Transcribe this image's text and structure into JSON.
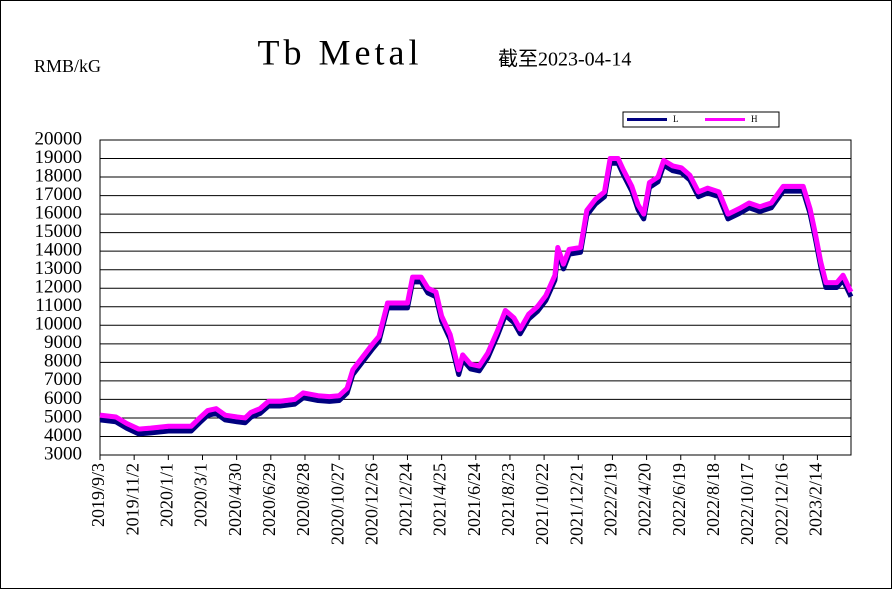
{
  "chart_data": {
    "type": "line",
    "title": "Tb Metal",
    "subtitle": "截至2023-04-14",
    "y_label": "RMB/kG",
    "x": [
      "2019/9/3",
      "2019/10/1",
      "2019/10/20",
      "2019/11/10",
      "2019/12/1",
      "2020/1/1",
      "2020/2/10",
      "2020/2/25",
      "2020/3/10",
      "2020/3/25",
      "2020/4/10",
      "2020/5/1",
      "2020/5/15",
      "2020/5/25",
      "2020/6/10",
      "2020/6/25",
      "2020/7/15",
      "2020/8/10",
      "2020/8/25",
      "2020/9/20",
      "2020/10/10",
      "2020/10/27",
      "2020/11/10",
      "2020/11/20",
      "2020/12/10",
      "2020/12/25",
      "2021/1/5",
      "2021/1/20",
      "2021/2/10",
      "2021/2/24",
      "2021/3/5",
      "2021/3/20",
      "2021/4/1",
      "2021/4/15",
      "2021/4/25",
      "2021/5/10",
      "2021/5/25",
      "2021/6/1",
      "2021/6/15",
      "2021/6/30",
      "2021/7/15",
      "2021/8/1",
      "2021/8/15",
      "2021/8/30",
      "2021/9/10",
      "2021/9/25",
      "2021/10/10",
      "2021/10/25",
      "2021/11/10",
      "2021/11/15",
      "2021/11/25",
      "2021/12/5",
      "2021/12/25",
      "2022/1/5",
      "2022/1/20",
      "2022/2/5",
      "2022/2/15",
      "2022/3/1",
      "2022/3/10",
      "2022/3/25",
      "2022/4/5",
      "2022/4/15",
      "2022/4/25",
      "2022/5/10",
      "2022/5/20",
      "2022/6/5",
      "2022/6/20",
      "2022/7/5",
      "2022/7/20",
      "2022/8/5",
      "2022/8/25",
      "2022/9/10",
      "2022/9/30",
      "2022/10/17",
      "2022/11/5",
      "2022/11/25",
      "2022/12/16",
      "2023/1/5",
      "2023/1/20",
      "2023/2/1",
      "2023/2/10",
      "2023/2/20",
      "2023/3/1",
      "2023/3/20",
      "2023/3/31",
      "2023/4/14"
    ],
    "series": [
      {
        "name": "L",
        "color": "#000080",
        "values": [
          5000,
          4900,
          4550,
          4250,
          4300,
          4400,
          4400,
          4850,
          5250,
          5350,
          5000,
          4900,
          4850,
          5150,
          5350,
          5750,
          5750,
          5850,
          6200,
          6050,
          6000,
          6050,
          6450,
          7450,
          8250,
          8850,
          9250,
          11050,
          11050,
          11050,
          12450,
          12450,
          11850,
          11650,
          10350,
          9350,
          7450,
          8250,
          7750,
          7650,
          8350,
          9550,
          10650,
          10250,
          9650,
          10450,
          10850,
          11450,
          12550,
          14050,
          13150,
          13950,
          14050,
          16050,
          16650,
          17050,
          18850,
          18850,
          18250,
          17350,
          16350,
          15850,
          17550,
          17850,
          18750,
          18450,
          18350,
          17950,
          17050,
          17250,
          17050,
          15850,
          16150,
          16450,
          16250,
          16450,
          17350,
          17350,
          17350,
          16150,
          14850,
          13250,
          12150,
          12150,
          12550,
          11650
        ]
      },
      {
        "name": "H",
        "color": "#ff00ff",
        "values": [
          5150,
          5050,
          4700,
          4400,
          4450,
          4550,
          4550,
          5000,
          5400,
          5500,
          5150,
          5050,
          5000,
          5300,
          5500,
          5900,
          5900,
          6000,
          6350,
          6200,
          6150,
          6200,
          6600,
          7600,
          8400,
          9000,
          9400,
          11200,
          11200,
          11200,
          12600,
          12600,
          12000,
          11800,
          10500,
          9500,
          7600,
          8400,
          7900,
          7800,
          8500,
          9700,
          10800,
          10400,
          9800,
          10600,
          11000,
          11600,
          12700,
          14200,
          13300,
          14100,
          14200,
          16200,
          16800,
          17200,
          19000,
          19000,
          18400,
          17500,
          16500,
          16000,
          17700,
          18000,
          18900,
          18600,
          18500,
          18100,
          17200,
          17400,
          17200,
          16000,
          16300,
          16600,
          16400,
          16600,
          17500,
          17500,
          17500,
          16300,
          15000,
          13400,
          12300,
          12300,
          12700,
          11800
        ]
      }
    ],
    "xlim": [
      "2019/9/3",
      "2023/4/14"
    ],
    "xticks": [
      "2019/9/3",
      "2019/11/2",
      "2020/1/1",
      "2020/3/1",
      "2020/4/30",
      "2020/6/29",
      "2020/8/28",
      "2020/10/27",
      "2020/12/26",
      "2021/2/24",
      "2021/4/25",
      "2021/6/24",
      "2021/8/23",
      "2021/10/22",
      "2021/12/21",
      "2022/2/19",
      "2022/4/20",
      "2022/6/19",
      "2022/8/18",
      "2022/10/17",
      "2022/12/16",
      "2023/2/14"
    ],
    "ylim": [
      3000,
      20000
    ],
    "yticks": [
      3000,
      4000,
      5000,
      6000,
      7000,
      8000,
      9000,
      10000,
      11000,
      12000,
      13000,
      14000,
      15000,
      16000,
      17000,
      18000,
      19000,
      20000
    ],
    "grid": true,
    "legend": "top-right"
  }
}
